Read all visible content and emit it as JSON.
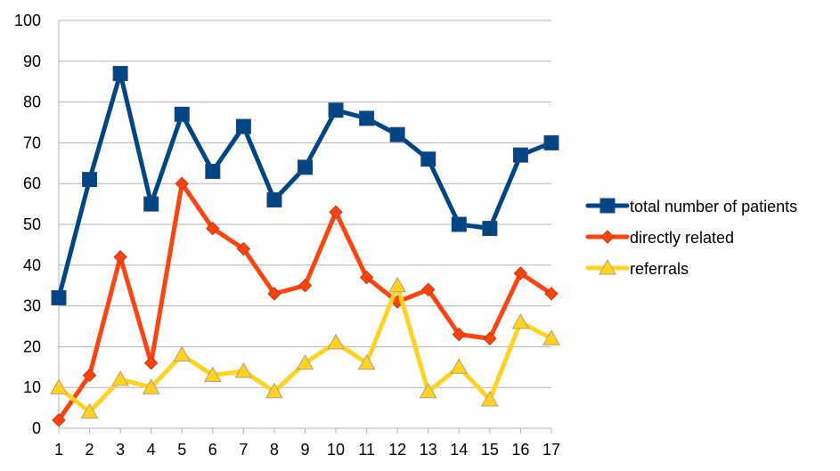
{
  "chart_data": {
    "type": "line",
    "title": "",
    "xlabel": "",
    "ylabel": "",
    "x": [
      1,
      2,
      3,
      4,
      5,
      6,
      7,
      8,
      9,
      10,
      11,
      12,
      13,
      14,
      15,
      16,
      17
    ],
    "x_tick_labels": [
      "1",
      "2",
      "3",
      "4",
      "5",
      "6",
      "7",
      "8",
      "9",
      "10",
      "11",
      "12",
      "13",
      "14",
      "15",
      "16",
      "17"
    ],
    "ylim": [
      0,
      100
    ],
    "y_ticks": [
      0,
      10,
      20,
      30,
      40,
      50,
      60,
      70,
      80,
      90,
      100
    ],
    "y_tick_labels": [
      "0",
      "10",
      "20",
      "30",
      "40",
      "50",
      "60",
      "70",
      "80",
      "90",
      "100"
    ],
    "grid": true,
    "legend_position": "right",
    "series": [
      {
        "name": "total number of patients",
        "color": "#004586",
        "marker": "square",
        "values": [
          32,
          61,
          87,
          55,
          77,
          63,
          74,
          56,
          64,
          78,
          76,
          72,
          66,
          50,
          49,
          67,
          70
        ]
      },
      {
        "name": "directly related",
        "color": "#ff420e",
        "marker": "diamond",
        "values": [
          2,
          13,
          42,
          16,
          60,
          49,
          44,
          33,
          35,
          53,
          37,
          31,
          34,
          23,
          22,
          38,
          33
        ]
      },
      {
        "name": "referrals",
        "color": "#ffd320",
        "marker": "triangle",
        "values": [
          10,
          4,
          12,
          10,
          18,
          13,
          14,
          9,
          16,
          21,
          16,
          35,
          9,
          15,
          7,
          26,
          22
        ]
      }
    ]
  }
}
